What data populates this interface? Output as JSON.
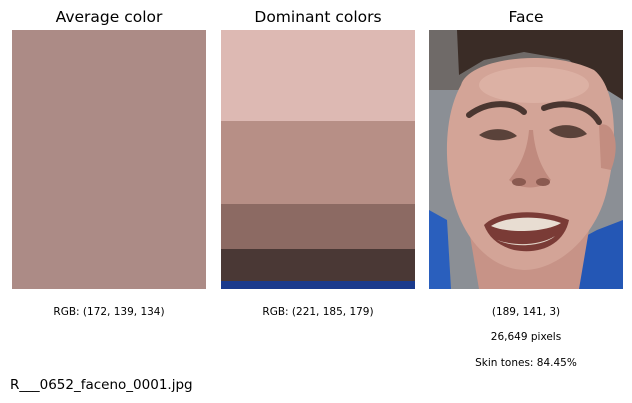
{
  "panels": {
    "average": {
      "title": "Average color",
      "color": "#ac8b86",
      "caption": "RGB: (172, 139, 134)"
    },
    "dominant": {
      "title": "Dominant colors",
      "caption": "RGB: (221, 185, 179)",
      "bands": [
        {
          "color": "#ddb9b3",
          "share": 0.352
        },
        {
          "color": "#b78f86",
          "share": 0.32
        },
        {
          "color": "#8c6a63",
          "share": 0.174
        },
        {
          "color": "#4a3835",
          "share": 0.124
        },
        {
          "color": "#1a3a8c",
          "share": 0.03
        }
      ]
    },
    "face": {
      "title": "Face",
      "caption_lines": [
        "(189, 141, 3)",
        "26,649 pixels",
        "Skin tones: 84.45%"
      ]
    }
  },
  "filename": "R___0652_faceno_0001.jpg"
}
